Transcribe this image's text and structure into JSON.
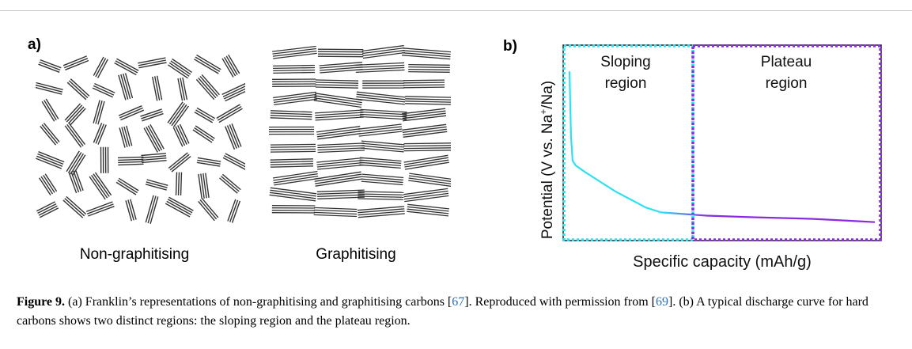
{
  "panel_a": {
    "label": "a)",
    "left_caption": "Non-graphitising",
    "right_caption": "Graphitising"
  },
  "panel_b": {
    "label": "b)",
    "xlabel": "Specific capacity (mAh/g)",
    "ylabel_pre": "Potential (V vs. Na",
    "ylabel_sup": "+",
    "ylabel_post": "/Na)",
    "sloping_label_1": "Sloping",
    "sloping_label_2": "region",
    "plateau_label_1": "Plateau",
    "plateau_label_2": "region",
    "colors": {
      "sloping": "#2de1f0",
      "plateau": "#8a2be2"
    }
  },
  "caption": {
    "fig_label": "Figure 9.",
    "text_1": " (a) Franklin’s representations of non-graphitising and graphitising carbons [",
    "ref_1": "67",
    "text_2": "]. Reproduced with permission from [",
    "ref_2": "69",
    "text_3": "]. (b) A typical discharge curve for hard carbons shows two distinct regions: the sloping region and the plateau region."
  },
  "chart_data": {
    "type": "line",
    "title": "",
    "xlabel": "Specific capacity (mAh/g)",
    "ylabel": "Potential (V vs. Na+/Na)",
    "x": [
      0,
      0.005,
      0.01,
      0.02,
      0.05,
      0.1,
      0.15,
      0.2,
      0.25,
      0.3,
      0.45,
      0.6,
      0.8,
      0.95,
      1.0
    ],
    "series": [
      {
        "values": [
          1.0,
          0.6,
          0.45,
          0.42,
          0.38,
          0.32,
          0.26,
          0.21,
          0.16,
          0.13,
          0.11,
          0.1,
          0.09,
          0.075,
          0.07
        ]
      }
    ],
    "xlim": [
      0,
      1
    ],
    "ylim": [
      0,
      1.05
    ],
    "regions": [
      "Sloping region",
      "Plateau region"
    ]
  }
}
